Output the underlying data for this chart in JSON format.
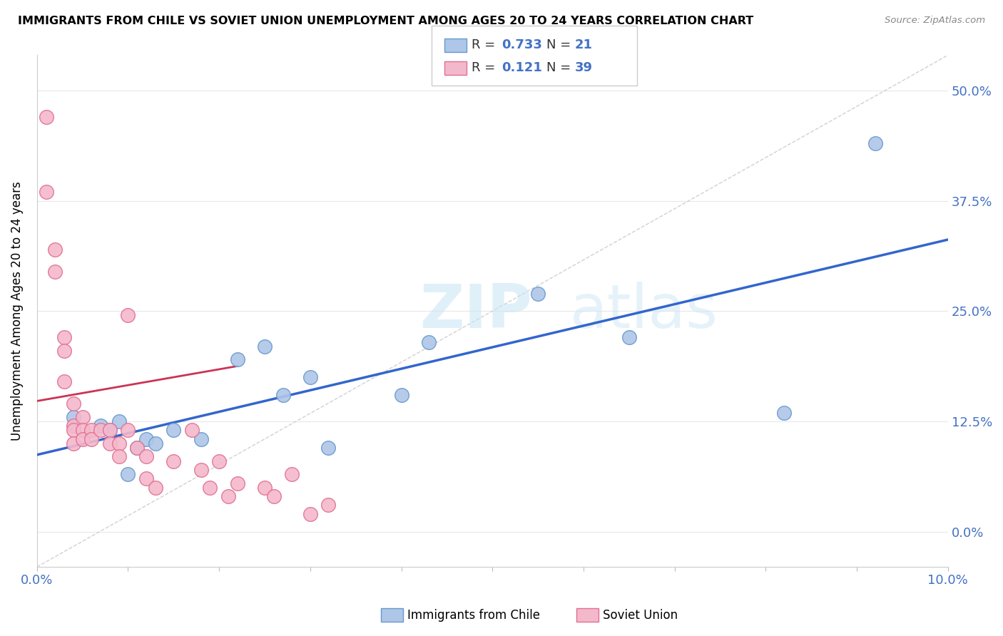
{
  "title": "IMMIGRANTS FROM CHILE VS SOVIET UNION UNEMPLOYMENT AMONG AGES 20 TO 24 YEARS CORRELATION CHART",
  "source": "Source: ZipAtlas.com",
  "ylabel_label": "Unemployment Among Ages 20 to 24 years",
  "xmin": 0.0,
  "xmax": 0.1,
  "ymin": -0.04,
  "ymax": 0.54,
  "watermark_text": "ZIP",
  "watermark_text2": "atlas",
  "chile_color": "#aec6e8",
  "chile_color_edge": "#6699cc",
  "soviet_color": "#f4b8cc",
  "soviet_color_edge": "#e07090",
  "trend_chile_color": "#3366cc",
  "trend_soviet_color": "#cc3355",
  "diag_color": "#cccccc",
  "chile_R": "0.733",
  "chile_N": "21",
  "soviet_R": "0.121",
  "soviet_N": "39",
  "chile_x": [
    0.004,
    0.007,
    0.008,
    0.009,
    0.011,
    0.012,
    0.013,
    0.015,
    0.018,
    0.022,
    0.025,
    0.027,
    0.03,
    0.032,
    0.04,
    0.043,
    0.055,
    0.065,
    0.082,
    0.092,
    0.01
  ],
  "chile_y": [
    0.13,
    0.12,
    0.115,
    0.125,
    0.095,
    0.105,
    0.1,
    0.115,
    0.105,
    0.195,
    0.21,
    0.155,
    0.175,
    0.095,
    0.155,
    0.215,
    0.27,
    0.22,
    0.135,
    0.44,
    0.065
  ],
  "soviet_x": [
    0.001,
    0.001,
    0.002,
    0.002,
    0.003,
    0.003,
    0.003,
    0.004,
    0.004,
    0.004,
    0.004,
    0.005,
    0.005,
    0.005,
    0.006,
    0.006,
    0.007,
    0.008,
    0.008,
    0.009,
    0.009,
    0.01,
    0.01,
    0.011,
    0.012,
    0.012,
    0.013,
    0.015,
    0.017,
    0.018,
    0.019,
    0.02,
    0.021,
    0.022,
    0.025,
    0.026,
    0.028,
    0.03,
    0.032
  ],
  "soviet_y": [
    0.47,
    0.385,
    0.32,
    0.295,
    0.22,
    0.205,
    0.17,
    0.145,
    0.12,
    0.115,
    0.1,
    0.13,
    0.115,
    0.105,
    0.115,
    0.105,
    0.115,
    0.115,
    0.1,
    0.1,
    0.085,
    0.115,
    0.245,
    0.095,
    0.085,
    0.06,
    0.05,
    0.08,
    0.115,
    0.07,
    0.05,
    0.08,
    0.04,
    0.055,
    0.05,
    0.04,
    0.065,
    0.02,
    0.03
  ],
  "soviet_trend_x": [
    0.001,
    0.022
  ],
  "soviet_trend_slope": 1.8,
  "soviet_trend_intercept": 0.148
}
